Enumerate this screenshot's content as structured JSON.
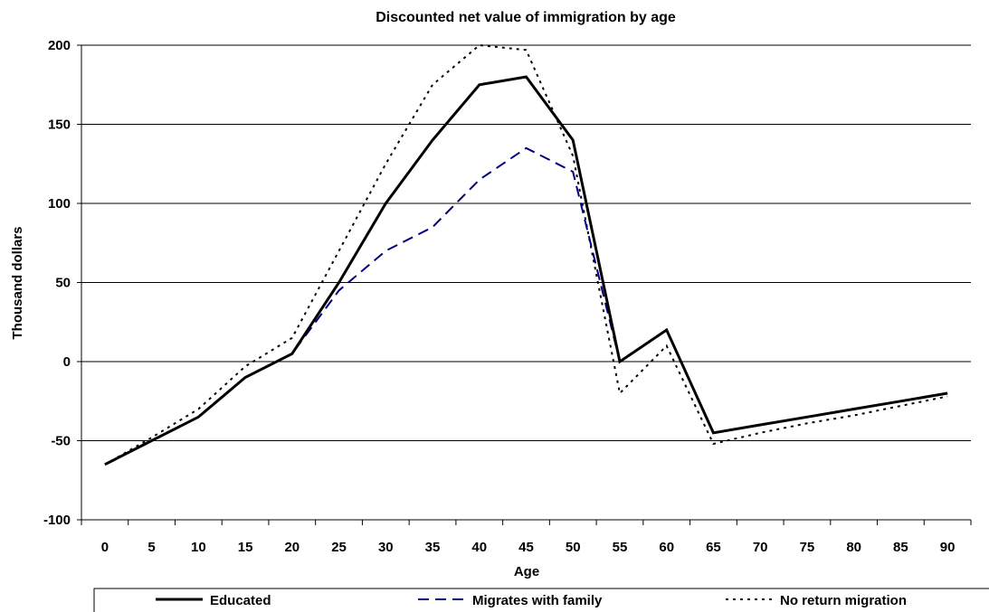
{
  "chart_data": {
    "type": "line",
    "title": "Discounted net value of immigration by age",
    "xlabel": "Age",
    "ylabel": "Thousand dollars",
    "categories": [
      "0",
      "5",
      "10",
      "15",
      "20",
      "25",
      "30",
      "35",
      "40",
      "45",
      "50",
      "55",
      "60",
      "65",
      "70",
      "75",
      "80",
      "85",
      "90"
    ],
    "ylim": [
      -100,
      200
    ],
    "yticks": [
      "200",
      "150",
      "100",
      "50",
      "0",
      "-50",
      "-100"
    ],
    "grid": true,
    "legend_position": "bottom",
    "series": [
      {
        "name": "Educated",
        "style": "solid",
        "color": "#000000",
        "values": [
          -65,
          -50,
          -35,
          -10,
          5,
          50,
          100,
          140,
          175,
          180,
          140,
          0,
          20,
          -45,
          -40,
          -35,
          -30,
          -25,
          -20
        ]
      },
      {
        "name": "Migrates with family",
        "style": "dashed",
        "color": "#000080",
        "values": [
          -65,
          -50,
          -35,
          -10,
          5,
          45,
          70,
          85,
          115,
          135,
          120,
          0,
          20,
          -45,
          -40,
          -35,
          -30,
          -25,
          -20
        ]
      },
      {
        "name": "No return migration",
        "style": "dotted",
        "color": "#000000",
        "values": [
          -65,
          -48,
          -30,
          -3,
          15,
          70,
          125,
          175,
          200,
          197,
          130,
          -20,
          10,
          -52,
          -45,
          -39,
          -34,
          -28,
          -22
        ]
      }
    ]
  }
}
